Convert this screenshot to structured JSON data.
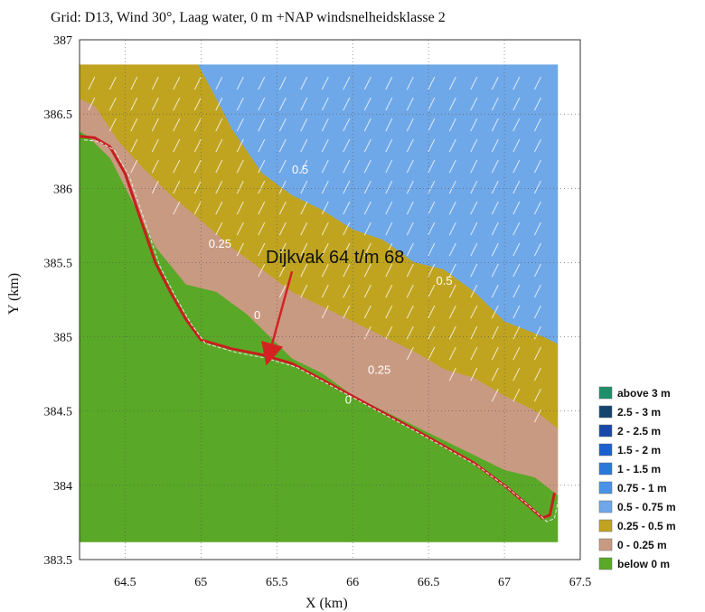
{
  "chart_data": {
    "type": "heatmap",
    "title": "Grid: D13, Wind 30°, Laag water, 0 m +NAP windsnelheidsklasse 2",
    "xlabel": "X (km)",
    "ylabel": "Y (km)",
    "xlim": [
      64.2,
      67.5
    ],
    "ylim": [
      383.5,
      387
    ],
    "x_ticks": [
      "64.5",
      "65",
      "65.5",
      "66",
      "66.5",
      "67",
      "67.5"
    ],
    "y_ticks": [
      "383.5",
      "384",
      "384.5",
      "385",
      "385.5",
      "386",
      "386.5",
      "387"
    ],
    "grid": true,
    "legend_position": "right",
    "legend": [
      {
        "label": "above 3 m",
        "color": "#1f8f6a"
      },
      {
        "label": "2.5 - 3 m",
        "color": "#14456e"
      },
      {
        "label": "2 - 2.5 m",
        "color": "#1848a8"
      },
      {
        "label": "1.5 - 2 m",
        "color": "#1b5fd0"
      },
      {
        "label": "1 - 1.5 m",
        "color": "#2a78dc"
      },
      {
        "label": "0.75 - 1 m",
        "color": "#4a93e6"
      },
      {
        "label": "0.5 - 0.75 m",
        "color": "#6fa8e8"
      },
      {
        "label": "0.25 - 0.5 m",
        "color": "#c0a420"
      },
      {
        "label": "0 - 0.25 m",
        "color": "#c99a82"
      },
      {
        "label": "below 0 m",
        "color": "#5aa827"
      }
    ],
    "zones": [
      {
        "name": "0.5 - 0.75 m",
        "color": "#6fa8e8",
        "boundary": [
          [
            64.98,
            386.83
          ],
          [
            67.35,
            386.83
          ],
          [
            67.35,
            384.95
          ],
          [
            67.25,
            385.0
          ],
          [
            67.0,
            385.1
          ],
          [
            66.8,
            385.3
          ],
          [
            66.6,
            385.45
          ],
          [
            66.4,
            385.5
          ],
          [
            66.2,
            385.65
          ],
          [
            66.0,
            385.72
          ],
          [
            65.8,
            385.85
          ],
          [
            65.6,
            385.95
          ],
          [
            65.4,
            386.1
          ],
          [
            65.3,
            386.25
          ],
          [
            65.2,
            386.4
          ],
          [
            65.1,
            386.6
          ],
          [
            64.98,
            386.83
          ]
        ]
      },
      {
        "name": "0.25 - 0.5 m",
        "color": "#c0a420",
        "boundary": [
          [
            64.2,
            386.83
          ],
          [
            64.98,
            386.83
          ],
          [
            65.1,
            386.6
          ],
          [
            65.2,
            386.4
          ],
          [
            65.3,
            386.25
          ],
          [
            65.4,
            386.1
          ],
          [
            65.6,
            385.95
          ],
          [
            65.8,
            385.85
          ],
          [
            66.0,
            385.72
          ],
          [
            66.2,
            385.65
          ],
          [
            66.4,
            385.5
          ],
          [
            66.6,
            385.45
          ],
          [
            66.8,
            385.3
          ],
          [
            67.0,
            385.1
          ],
          [
            67.25,
            385.0
          ],
          [
            67.35,
            384.95
          ],
          [
            67.35,
            384.38
          ],
          [
            67.2,
            384.5
          ],
          [
            67.0,
            384.6
          ],
          [
            66.8,
            384.72
          ],
          [
            66.6,
            384.78
          ],
          [
            66.4,
            384.9
          ],
          [
            66.2,
            385.0
          ],
          [
            66.0,
            385.1
          ],
          [
            65.8,
            385.2
          ],
          [
            65.6,
            385.3
          ],
          [
            65.4,
            385.45
          ],
          [
            65.2,
            385.6
          ],
          [
            65.0,
            385.78
          ],
          [
            64.8,
            385.95
          ],
          [
            64.6,
            386.15
          ],
          [
            64.45,
            386.32
          ],
          [
            64.3,
            386.55
          ],
          [
            64.2,
            386.6
          ]
        ]
      },
      {
        "name": "0 - 0.25 m",
        "color": "#c99a82",
        "boundary": [
          [
            64.2,
            386.6
          ],
          [
            64.3,
            386.55
          ],
          [
            64.45,
            386.32
          ],
          [
            64.6,
            386.15
          ],
          [
            64.8,
            385.95
          ],
          [
            65.0,
            385.78
          ],
          [
            65.2,
            385.6
          ],
          [
            65.4,
            385.45
          ],
          [
            65.6,
            385.3
          ],
          [
            65.8,
            385.2
          ],
          [
            66.0,
            385.1
          ],
          [
            66.2,
            385.0
          ],
          [
            66.4,
            384.9
          ],
          [
            66.6,
            384.78
          ],
          [
            66.8,
            384.72
          ],
          [
            67.0,
            384.6
          ],
          [
            67.2,
            384.5
          ],
          [
            67.35,
            384.38
          ],
          [
            67.35,
            383.93
          ],
          [
            67.2,
            384.05
          ],
          [
            67.0,
            384.1
          ],
          [
            66.8,
            384.2
          ],
          [
            66.6,
            384.3
          ],
          [
            66.4,
            384.4
          ],
          [
            66.2,
            384.5
          ],
          [
            66.0,
            384.6
          ],
          [
            65.8,
            384.75
          ],
          [
            65.6,
            384.85
          ],
          [
            65.3,
            385.15
          ],
          [
            65.1,
            385.3
          ],
          [
            64.9,
            385.35
          ],
          [
            64.7,
            385.6
          ],
          [
            64.55,
            385.9
          ],
          [
            64.4,
            386.2
          ],
          [
            64.25,
            386.35
          ],
          [
            64.2,
            386.38
          ]
        ]
      },
      {
        "name": "below 0 m",
        "color": "#5aa827",
        "boundary": [
          [
            64.2,
            386.38
          ],
          [
            64.25,
            386.35
          ],
          [
            64.4,
            386.2
          ],
          [
            64.55,
            385.9
          ],
          [
            64.7,
            385.6
          ],
          [
            64.9,
            385.35
          ],
          [
            65.1,
            385.3
          ],
          [
            65.3,
            385.15
          ],
          [
            65.6,
            384.85
          ],
          [
            65.8,
            384.75
          ],
          [
            66.0,
            384.6
          ],
          [
            66.2,
            384.5
          ],
          [
            66.4,
            384.4
          ],
          [
            66.6,
            384.3
          ],
          [
            66.8,
            384.2
          ],
          [
            67.0,
            384.1
          ],
          [
            67.2,
            384.05
          ],
          [
            67.35,
            383.93
          ],
          [
            67.35,
            383.62
          ],
          [
            64.2,
            383.62
          ]
        ]
      }
    ],
    "contour_labels": [
      {
        "text": "0.5",
        "x": 65.6,
        "y": 386.1
      },
      {
        "text": "0.5",
        "x": 66.55,
        "y": 385.35
      },
      {
        "text": "0.25",
        "x": 65.05,
        "y": 385.6
      },
      {
        "text": "0.25",
        "x": 66.1,
        "y": 384.75
      },
      {
        "text": "0",
        "x": 65.35,
        "y": 385.12
      },
      {
        "text": "0",
        "x": 65.95,
        "y": 384.55
      }
    ],
    "dike_line": [
      [
        64.2,
        386.35
      ],
      [
        64.3,
        386.34
      ],
      [
        64.4,
        386.28
      ],
      [
        64.5,
        386.1
      ],
      [
        64.6,
        385.8
      ],
      [
        64.7,
        385.5
      ],
      [
        64.8,
        385.3
      ],
      [
        64.9,
        385.12
      ],
      [
        65.0,
        384.98
      ],
      [
        65.2,
        384.92
      ],
      [
        65.4,
        384.88
      ],
      [
        65.6,
        384.82
      ],
      [
        66.0,
        384.6
      ],
      [
        66.4,
        384.38
      ],
      [
        66.8,
        384.15
      ],
      [
        67.0,
        384.0
      ],
      [
        67.15,
        383.87
      ],
      [
        67.25,
        383.78
      ],
      [
        67.3,
        383.8
      ],
      [
        67.33,
        383.95
      ]
    ],
    "annotation": {
      "text": "Dijkvak 64 t/m 68",
      "x": 65.38,
      "y": 385.5,
      "arrow_from": [
        65.6,
        385.44
      ],
      "arrow_to": [
        65.45,
        384.88
      ]
    }
  }
}
